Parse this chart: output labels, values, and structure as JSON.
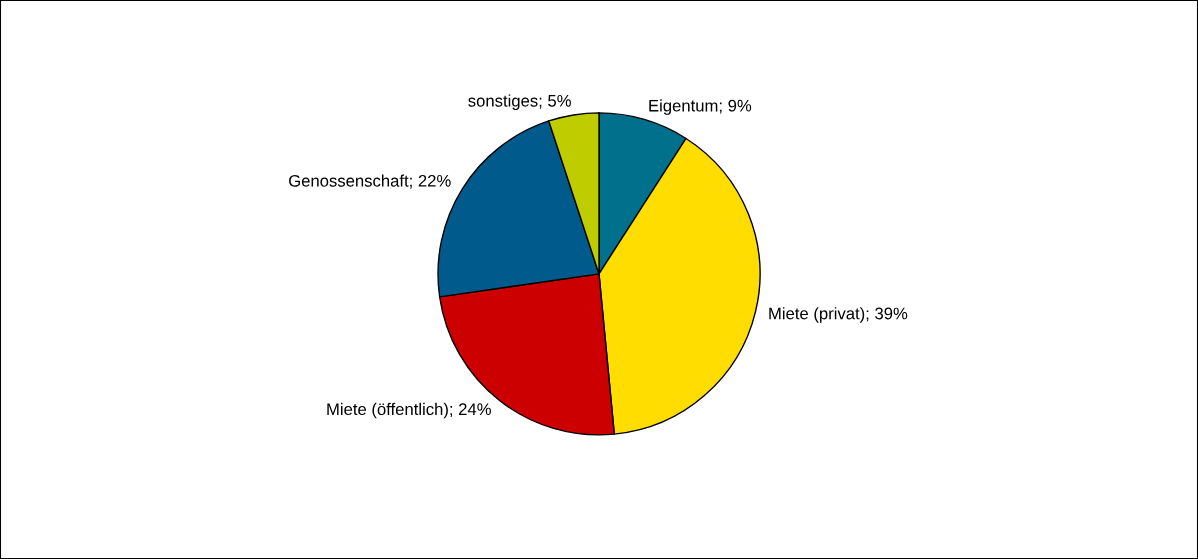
{
  "chart_data": {
    "type": "pie",
    "categories": [
      "Eigentum",
      "Miete (privat)",
      "Miete (öffentlich)",
      "Genossenschaft",
      "sonstiges"
    ],
    "values": [
      9,
      39,
      24,
      22,
      5
    ],
    "value_labels": [
      "9%",
      "39%",
      "24%",
      "22%",
      "5%"
    ],
    "colors": [
      "#00708c",
      "#ffdd00",
      "#cc0000",
      "#005a8c",
      "#bfcc00"
    ]
  }
}
